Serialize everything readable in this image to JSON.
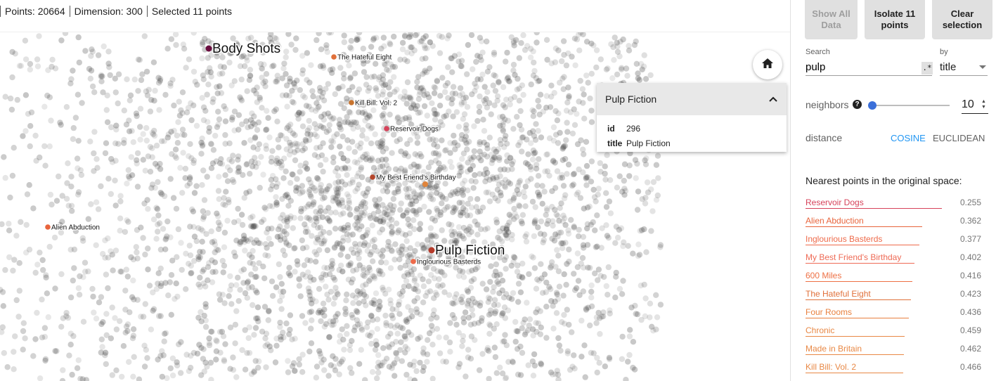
{
  "status": {
    "points": "Points: 20664",
    "dimension": "Dimension: 300",
    "selected": "Selected 11 points"
  },
  "plot": {
    "home_icon": "home-icon",
    "labels": [
      {
        "text": "Body Shots",
        "big": true,
        "color": "#6a0d3f"
      },
      {
        "text": "The Hateful Eight",
        "big": false,
        "color": "#e0703a"
      },
      {
        "text": "Kill Bill: Vol. 2",
        "big": false,
        "color": "#c8742e"
      },
      {
        "text": "Reservoir Dogs",
        "big": false,
        "color": "#d6425a"
      },
      {
        "text": "My Best Friend's Birthday",
        "big": false,
        "color": "#b5452b"
      },
      {
        "text": "Alien Abduction",
        "big": false,
        "color": "#e8643c"
      },
      {
        "text": "Pulp Fiction",
        "big": true,
        "color": "#b53a2a"
      },
      {
        "text": "Inglourious Basterds",
        "big": false,
        "color": "#ee6a4a"
      }
    ]
  },
  "info_card": {
    "title": "Pulp Fiction",
    "rows": [
      {
        "key": "id",
        "value": "296"
      },
      {
        "key": "title",
        "value": "Pulp Fiction"
      }
    ]
  },
  "panel": {
    "buttons": {
      "show_all": "Show All Data",
      "isolate": "Isolate 11 points",
      "clear": "Clear selection"
    },
    "search_label": "Search",
    "search_value": "pulp",
    "regex_label": ".*",
    "by_label": "by",
    "by_value": "title",
    "neighbors_label": "neighbors",
    "neighbors_value": "10",
    "neighbors_fraction": 0.0,
    "distance_label": "distance",
    "distance_cosine": "COSINE",
    "distance_euclidean": "EUCLIDEAN",
    "nearest_title": "Nearest points in the original space:",
    "nearest": [
      {
        "name": "Reservoir Dogs",
        "value": "0.255",
        "color": "#d6425a"
      },
      {
        "name": "Alien Abduction",
        "value": "0.362",
        "color": "#e8643c"
      },
      {
        "name": "Inglourious Basterds",
        "value": "0.377",
        "color": "#ee6a4a"
      },
      {
        "name": "My Best Friend's Birthday",
        "value": "0.402",
        "color": "#ee6a55"
      },
      {
        "name": "600 Miles",
        "value": "0.416",
        "color": "#ee7044"
      },
      {
        "name": "The Hateful Eight",
        "value": "0.423",
        "color": "#e0703a"
      },
      {
        "name": "Four Rooms",
        "value": "0.436",
        "color": "#e8803f"
      },
      {
        "name": "Chronic",
        "value": "0.459",
        "color": "#e88845"
      },
      {
        "name": "Made in Britain",
        "value": "0.462",
        "color": "#e88845"
      },
      {
        "name": "Kill Bill: Vol. 2",
        "value": "0.466",
        "color": "#e88845"
      }
    ]
  }
}
